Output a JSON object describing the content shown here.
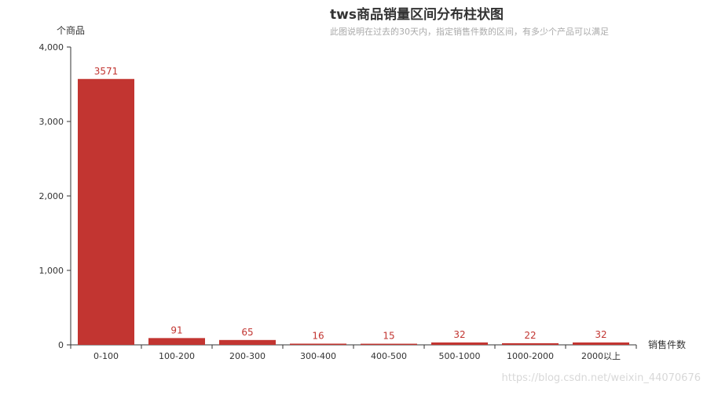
{
  "chart_data": {
    "type": "bar",
    "title": "tws商品销量区间分布柱状图",
    "subtitle": "此图说明在过去的30天内，指定销售件数的区间，有多少个产品可以满足",
    "xlabel": "销售件数",
    "ylabel": "个商品",
    "categories": [
      "0-100",
      "100-200",
      "200-300",
      "300-400",
      "400-500",
      "500-1000",
      "1000-2000",
      "2000以上"
    ],
    "values": [
      3571,
      91,
      65,
      16,
      15,
      32,
      22,
      32
    ],
    "ylim": [
      0,
      4000
    ],
    "yticks": [
      0,
      1000,
      2000,
      3000,
      4000
    ],
    "ytick_labels": [
      "0",
      "1,000",
      "2,000",
      "3,000",
      "4,000"
    ],
    "bar_color": "#c23531",
    "label_color": "#c23531",
    "grid": false,
    "legend": "none"
  },
  "watermark": "https://blog.csdn.net/weixin_44070676"
}
